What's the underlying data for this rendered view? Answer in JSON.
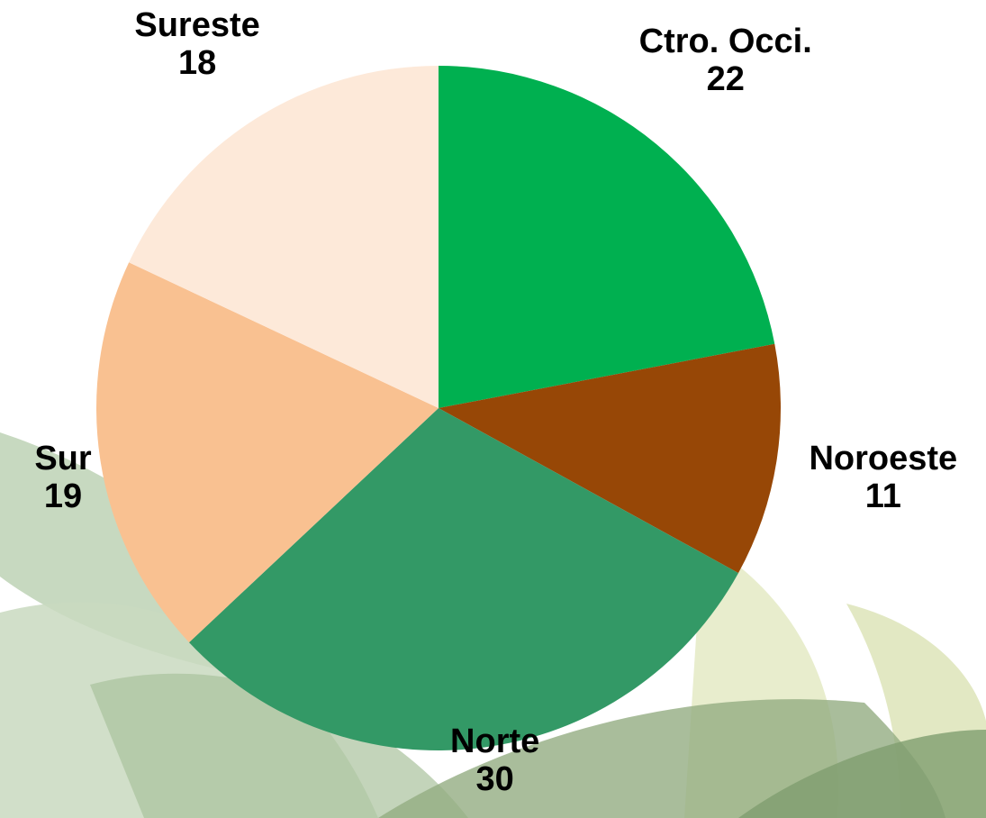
{
  "chart_data": {
    "type": "pie",
    "categories": [
      "Ctro. Occi.",
      "Noroeste",
      "Norte",
      "Sur",
      "Sureste"
    ],
    "values": [
      22,
      11,
      30,
      19,
      18
    ],
    "colors": [
      "#00b050",
      "#974706",
      "#339966",
      "#f9c191",
      "#fde9d9"
    ]
  }
}
